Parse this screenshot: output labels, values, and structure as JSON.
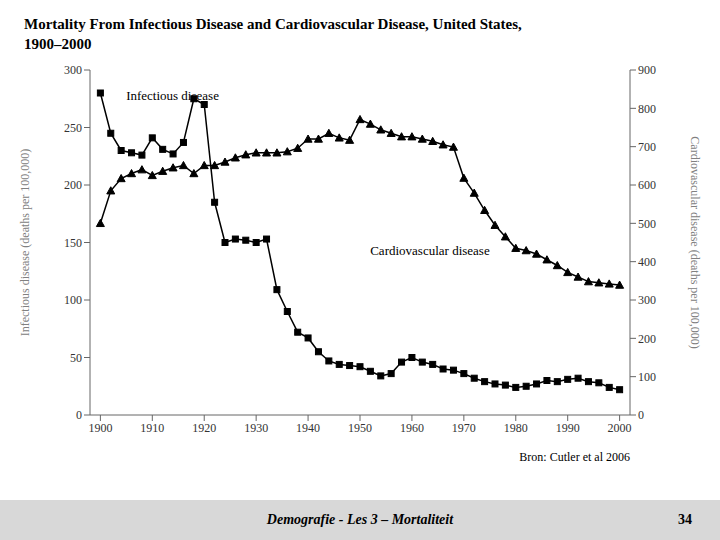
{
  "chart_data": {
    "type": "line",
    "title": "Mortality  From  Infectious Disease  and  Cardiovascular Disease,  United  States,",
    "subtitle": "1900–2000",
    "x": [
      1900,
      1902,
      1904,
      1906,
      1908,
      1910,
      1912,
      1914,
      1916,
      1918,
      1920,
      1922,
      1924,
      1926,
      1928,
      1930,
      1932,
      1934,
      1936,
      1938,
      1940,
      1942,
      1944,
      1946,
      1948,
      1950,
      1952,
      1954,
      1956,
      1958,
      1960,
      1962,
      1964,
      1966,
      1968,
      1970,
      1972,
      1974,
      1976,
      1978,
      1980,
      1982,
      1984,
      1986,
      1988,
      1990,
      1992,
      1994,
      1996,
      1998,
      2000
    ],
    "series": [
      {
        "name": "Infectious disease",
        "color": "#000000",
        "marker": "square",
        "values": [
          280,
          245,
          230,
          228,
          226,
          241,
          231,
          227,
          237,
          275,
          270,
          185,
          150,
          153,
          152,
          150,
          153,
          109,
          90,
          72,
          67,
          55,
          47,
          44,
          43,
          42,
          38,
          34,
          36,
          46,
          50,
          46,
          44,
          40,
          39,
          36,
          32,
          29,
          27,
          26,
          24,
          25,
          27,
          30,
          29,
          31,
          32,
          29,
          28,
          24,
          22
        ]
      },
      {
        "name": "Cardiovascular disease",
        "color": "#000000",
        "marker": "triangle",
        "axis": "y2",
        "values": [
          500,
          585,
          617,
          630,
          640,
          625,
          636,
          645,
          651,
          630,
          651,
          651,
          660,
          671,
          679,
          684,
          684,
          684,
          687,
          696,
          720,
          720,
          735,
          723,
          717,
          771,
          759,
          744,
          735,
          726,
          726,
          720,
          714,
          705,
          699,
          618,
          579,
          534,
          495,
          465,
          435,
          429,
          420,
          405,
          390,
          372,
          360,
          348,
          345,
          342,
          339
        ]
      }
    ],
    "ylabel": "Infectious disease (deaths per 100,000)",
    "y2label": "Cardiovascular disease (deaths per 100,000)",
    "xlim": [
      1898,
      2002
    ],
    "xticks": [
      1900,
      1910,
      1920,
      1930,
      1940,
      1950,
      1960,
      1970,
      1980,
      1990,
      2000
    ],
    "ylim": [
      0,
      300
    ],
    "yticks": [
      0,
      50,
      100,
      150,
      200,
      250,
      300
    ],
    "y2lim": [
      0,
      900
    ],
    "y2ticks": [
      0,
      100,
      200,
      300,
      400,
      500,
      600,
      700,
      800,
      900
    ],
    "grid": false,
    "annotations": [
      {
        "text": "Infectious disease",
        "x": 1904,
        "y": 278
      },
      {
        "text": "Cardiovascular disease",
        "x": 1951,
        "y": 143
      }
    ],
    "source": "Bron: Cutler et al  2006",
    "footer": "Demografie - Les 3 – Mortaliteit",
    "page": "34"
  }
}
